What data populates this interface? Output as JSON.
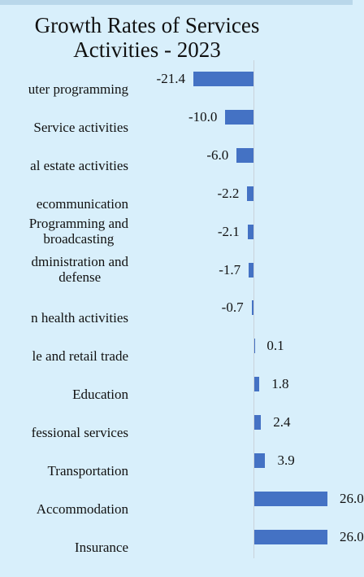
{
  "chart_data": {
    "type": "bar",
    "orientation": "horizontal",
    "title": "Growth Rates of Services\nActivities - 2023",
    "categories": [
      "uter programming",
      "Service activities",
      "al estate activities",
      "ecommunication",
      "Programming and\nbroadcasting",
      "dministration and\ndefense",
      "n health activities",
      "le and retail trade",
      "Education",
      "fessional services",
      "Transportation",
      "Accommodation",
      "Insurance"
    ],
    "values": [
      -21.4,
      -10.0,
      -6.0,
      -2.2,
      -2.1,
      -1.7,
      -0.7,
      0.1,
      1.8,
      2.4,
      3.9,
      26.0,
      26.0
    ],
    "value_labels": [
      "-21.4",
      "-10.0",
      "-6.0",
      "-2.2",
      "-2.1",
      "-1.7",
      "-0.7",
      "0.1",
      "1.8",
      "2.4",
      "3.9",
      "26.0",
      "26.0"
    ],
    "color": "#4472c4"
  }
}
